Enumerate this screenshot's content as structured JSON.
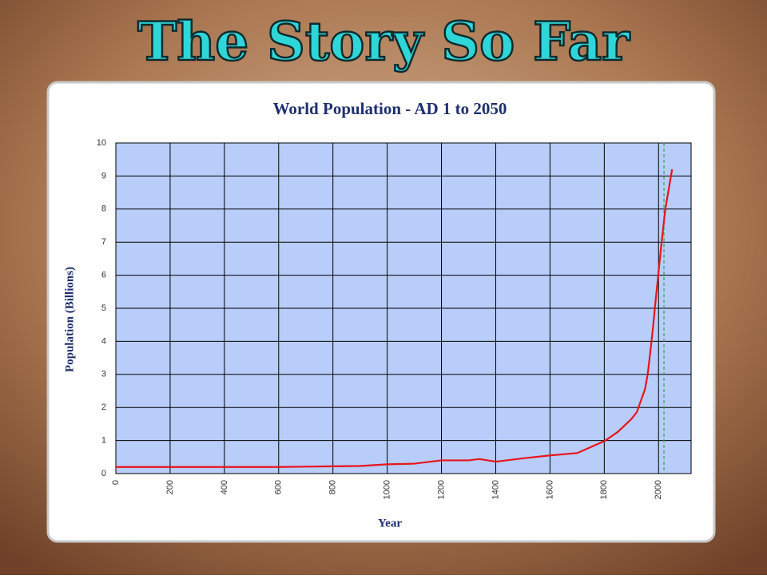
{
  "slide_title": "The Story So Far",
  "chart_data": {
    "type": "line",
    "title": "World Population - AD 1 to 2050",
    "x_label": "Year",
    "y_label": "Population (Billions)",
    "x": [
      0,
      200,
      400,
      600,
      800,
      900,
      1000,
      1100,
      1200,
      1300,
      1340,
      1400,
      1500,
      1600,
      1700,
      1750,
      1800,
      1850,
      1900,
      1920,
      1950,
      1960,
      1970,
      1980,
      1990,
      2000,
      2010,
      2025,
      2050
    ],
    "series": [
      {
        "name": "World Population",
        "color": "#e8141c",
        "values": [
          0.2,
          0.2,
          0.2,
          0.2,
          0.22,
          0.23,
          0.28,
          0.3,
          0.4,
          0.4,
          0.44,
          0.36,
          0.46,
          0.55,
          0.62,
          0.8,
          0.98,
          1.26,
          1.65,
          1.86,
          2.55,
          3.0,
          3.7,
          4.45,
          5.3,
          6.1,
          6.9,
          8.0,
          9.2
        ]
      }
    ],
    "xlim": [
      0,
      2120
    ],
    "xticks": [
      0,
      200,
      400,
      600,
      800,
      1000,
      1200,
      1400,
      1600,
      1800,
      2000
    ],
    "ylim": [
      0,
      10
    ],
    "yticks": [
      0,
      1,
      2,
      3,
      4,
      5,
      6,
      7,
      8,
      9,
      10
    ],
    "grid": true,
    "reference_line_x": 2020,
    "reference_line_color": "#2aa84a",
    "plot_background": "#b9cdfa"
  }
}
